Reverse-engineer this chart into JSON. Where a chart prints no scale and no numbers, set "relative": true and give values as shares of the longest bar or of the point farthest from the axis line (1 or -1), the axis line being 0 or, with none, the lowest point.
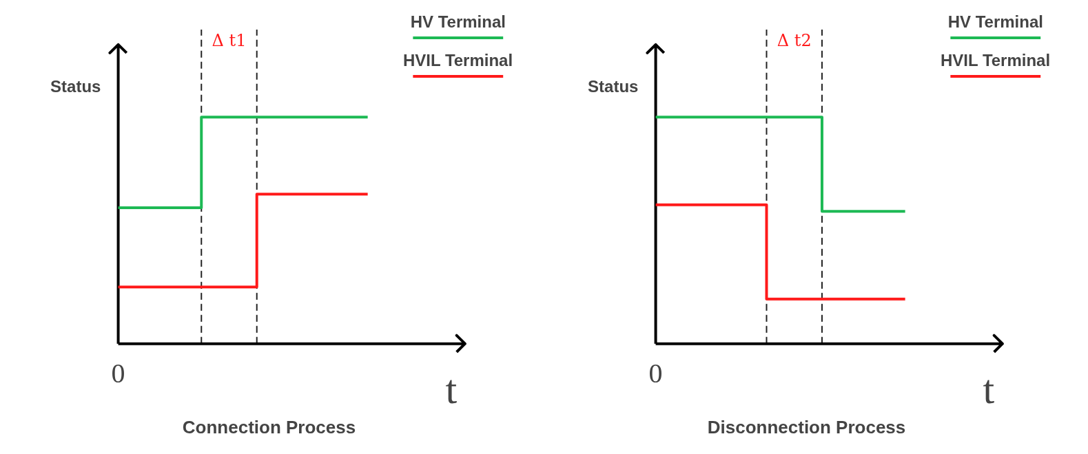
{
  "chart_data": [
    {
      "type": "step",
      "title": "Connection Process",
      "xlabel": "t",
      "ylabel": "Status",
      "relative": true,
      "annotations": [
        "0",
        "Δ t1"
      ],
      "legend": "top right",
      "categories": [
        null,
        null,
        null,
        null,
        null,
        null,
        null,
        null,
        null,
        null
      ],
      "series": [
        {
          "name": "HV Terminal",
          "color": "#1db954",
          "values": [
            0.6,
            0.6,
            0.6,
            1,
            1,
            1,
            1,
            1,
            1,
            1
          ]
        },
        {
          "name": "HVIL Terminal",
          "color": "#ff1a1a",
          "values": [
            0.25,
            0.25,
            0.25,
            0.25,
            0.25,
            0.66,
            0.66,
            0.66,
            0.66,
            0.66
          ]
        }
      ]
    },
    {
      "type": "step",
      "title": "Disconnection Process",
      "xlabel": "t",
      "ylabel": "Status",
      "relative": true,
      "annotations": [
        "0",
        "Δ t2"
      ],
      "legend": "top right",
      "categories": [
        null,
        null,
        null,
        null,
        null,
        null,
        null,
        null,
        null,
        null
      ],
      "series": [
        {
          "name": "HV Terminal",
          "color": "#1db954",
          "values": [
            1,
            1,
            1,
            1,
            1,
            1,
            0.584,
            0.584,
            0.584,
            0.584
          ]
        },
        {
          "name": "HVIL Terminal",
          "color": "#ff1a1a",
          "values": [
            0.613,
            0.613,
            0.613,
            0.613,
            0.197,
            0.197,
            0.197,
            0.197,
            0.197,
            0.197
          ]
        }
      ]
    }
  ]
}
